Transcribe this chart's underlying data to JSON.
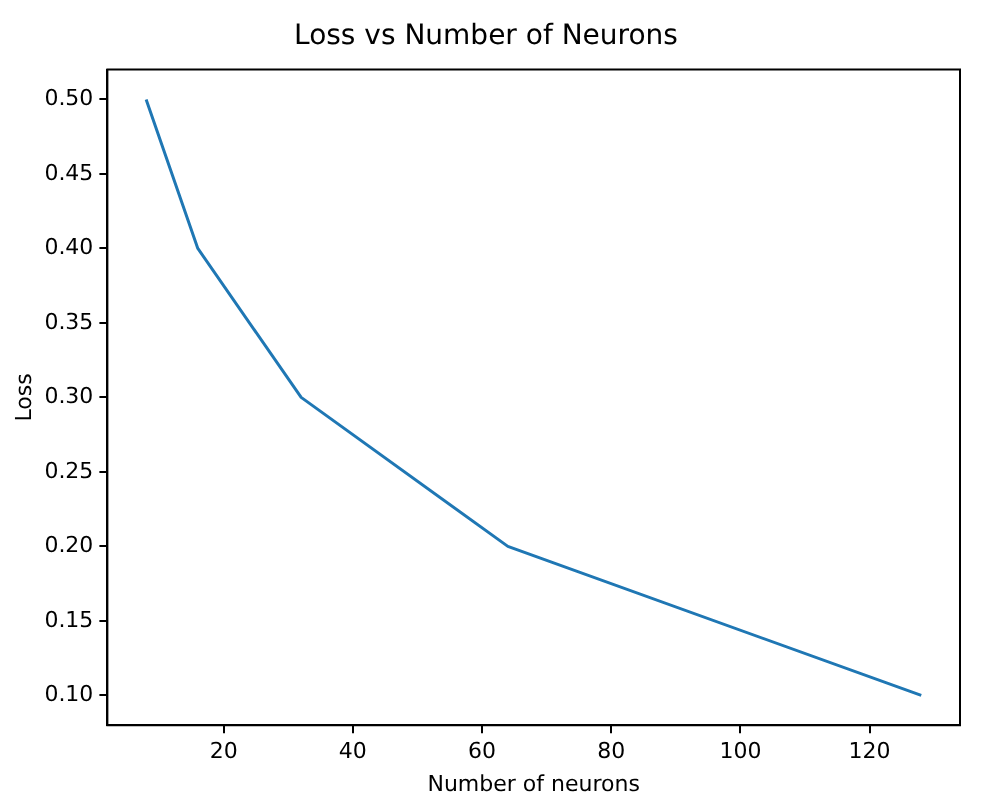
{
  "chart_data": {
    "type": "line",
    "title": "Loss vs Number of Neurons",
    "xlabel": "Number of neurons",
    "ylabel": "Loss",
    "x": [
      8,
      16,
      32,
      64,
      128
    ],
    "series": [
      {
        "color": "#1f77b4",
        "values": [
          0.5,
          0.4,
          0.3,
          0.2,
          0.1
        ]
      }
    ],
    "xlim": [
      2,
      134
    ],
    "xticks": [
      20,
      40,
      60,
      80,
      100,
      120
    ],
    "ylim": [
      0.08,
      0.52
    ],
    "yticks": [
      {
        "value": 0.1,
        "label": "0.10"
      },
      {
        "value": 0.15,
        "label": "0.15"
      },
      {
        "value": 0.2,
        "label": "0.20"
      },
      {
        "value": 0.25,
        "label": "0.25"
      },
      {
        "value": 0.3,
        "label": "0.30"
      },
      {
        "value": 0.35,
        "label": "0.35"
      },
      {
        "value": 0.4,
        "label": "0.40"
      },
      {
        "value": 0.45,
        "label": "0.45"
      },
      {
        "value": 0.5,
        "label": "0.50"
      }
    ],
    "grid": false,
    "legend": false
  }
}
